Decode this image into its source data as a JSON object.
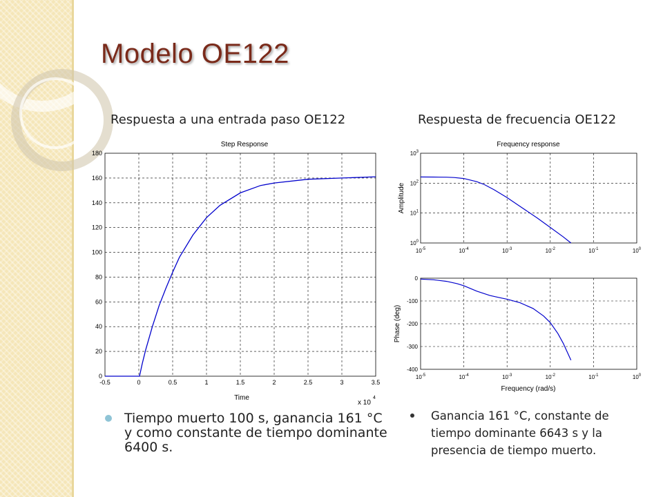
{
  "title": "Modelo OE122",
  "subheadings": {
    "left": "Respuesta a una entrada paso OE122",
    "right": "Respuesta de frecuencia OE122"
  },
  "bullets": {
    "left": "Tiempo muerto 100 s, ganancia 161 °C y como constante de tiempo dominante 6400 s.",
    "right": "Ganancia 161 °C, constante de tiempo dominante 6643 s y la presencia de tiempo muerto."
  },
  "colors": {
    "title": "#7a2a1a",
    "trace": "#0000cc",
    "sidebar": "#f5e6b8"
  },
  "chart_data": [
    {
      "type": "line",
      "title": "Step Response",
      "xlabel": "Time",
      "x_multiplier_label": "x 10",
      "x_multiplier_exp": "4",
      "ylabel": "",
      "xlim": [
        -0.5,
        3.5
      ],
      "ylim": [
        0,
        180
      ],
      "xticks": [
        "-0.5",
        "0",
        "0.5",
        "1",
        "1.5",
        "2",
        "2.5",
        "3",
        "3.5"
      ],
      "yticks": [
        "0",
        "20",
        "40",
        "60",
        "80",
        "100",
        "120",
        "140",
        "160",
        "180"
      ],
      "grid": true,
      "legend": "none",
      "x": [
        -0.5,
        0,
        0.01,
        0.05,
        0.1,
        0.2,
        0.3,
        0.4,
        0.5,
        0.6,
        0.8,
        1.0,
        1.2,
        1.5,
        1.8,
        2.0,
        2.5,
        3.0,
        3.5
      ],
      "y": [
        0,
        0,
        0,
        10,
        21,
        40,
        57,
        71,
        84,
        96,
        114,
        128,
        138,
        148,
        154,
        156,
        159,
        160,
        161
      ]
    },
    {
      "type": "line",
      "title": "Frequency response",
      "xlabel": "",
      "ylabel": "Amplitude",
      "xscale": "log",
      "yscale": "log",
      "xlim": [
        1e-05,
        1
      ],
      "ylim": [
        1,
        1000
      ],
      "xtick_exps": [
        "-5",
        "-4",
        "-3",
        "-2",
        "-1",
        "0"
      ],
      "ytick_exps": [
        "0",
        "1",
        "2",
        "3"
      ],
      "grid": true,
      "legend": "none",
      "x": [
        1e-05,
        2e-05,
        4e-05,
        6e-05,
        0.0001,
        0.0002,
        0.0003,
        0.0005,
        0.001,
        0.002,
        0.005,
        0.01,
        0.02,
        0.03
      ],
      "y": [
        161,
        160,
        158,
        154,
        143,
        112,
        89,
        60,
        33,
        16.7,
        6.8,
        3.3,
        1.6,
        1.0
      ]
    },
    {
      "type": "line",
      "title": "",
      "xlabel": "Frequency (rad/s)",
      "ylabel": "Phase (deg)",
      "xscale": "log",
      "xlim": [
        1e-05,
        1
      ],
      "ylim": [
        -400,
        0
      ],
      "xtick_exps": [
        "-5",
        "-4",
        "-3",
        "-2",
        "-1",
        "0"
      ],
      "yticks": [
        "-400",
        "-300",
        "-200",
        "-100",
        "0"
      ],
      "grid": true,
      "legend": "none",
      "x": [
        1e-05,
        2e-05,
        4e-05,
        7e-05,
        0.0001,
        0.0002,
        0.0004,
        0.0007,
        0.001,
        0.002,
        0.004,
        0.007,
        0.01,
        0.015,
        0.02,
        0.03
      ],
      "y": [
        -4,
        -7,
        -14,
        -24,
        -33,
        -57,
        -76,
        -86,
        -92,
        -108,
        -133,
        -166,
        -195,
        -243,
        -286,
        -360
      ]
    }
  ]
}
